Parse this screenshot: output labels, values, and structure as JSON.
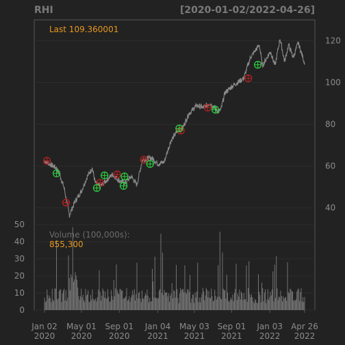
{
  "chart_data": {
    "type": "line",
    "title": "RHI",
    "date_range": "[2020-01-02/2022-04-26]",
    "last_label": "Last 109.360001",
    "price_axis": {
      "ylim": [
        32,
        130
      ],
      "ticks": [
        "40",
        "60",
        "80",
        "100",
        "120"
      ]
    },
    "price_series": {
      "name": "RHI",
      "points": [
        [
          "2020-01-02",
          62.5
        ],
        [
          "2020-02-10",
          59
        ],
        [
          "2020-02-20",
          56
        ],
        [
          "2020-03-05",
          50
        ],
        [
          "2020-03-23",
          36.5
        ],
        [
          "2020-04-10",
          43
        ],
        [
          "2020-05-01",
          48
        ],
        [
          "2020-05-20",
          55
        ],
        [
          "2020-06-05",
          59
        ],
        [
          "2020-06-15",
          52
        ],
        [
          "2020-07-01",
          50
        ],
        [
          "2020-07-20",
          53
        ],
        [
          "2020-08-10",
          56
        ],
        [
          "2020-09-01",
          53
        ],
        [
          "2020-09-20",
          52
        ],
        [
          "2020-10-10",
          55
        ],
        [
          "2020-10-28",
          51
        ],
        [
          "2020-11-15",
          63
        ],
        [
          "2020-12-15",
          64
        ],
        [
          "2021-01-05",
          61
        ],
        [
          "2021-01-25",
          62
        ],
        [
          "2021-02-15",
          72
        ],
        [
          "2021-03-10",
          77
        ],
        [
          "2021-03-25",
          78
        ],
        [
          "2021-04-15",
          85
        ],
        [
          "2021-05-10",
          89
        ],
        [
          "2021-06-01",
          88
        ],
        [
          "2021-06-20",
          90
        ],
        [
          "2021-07-01",
          89
        ],
        [
          "2021-07-20",
          86
        ],
        [
          "2021-07-28",
          87
        ],
        [
          "2021-08-10",
          95
        ],
        [
          "2021-09-01",
          98
        ],
        [
          "2021-09-20",
          100
        ],
        [
          "2021-10-10",
          102
        ],
        [
          "2021-11-01",
          112
        ],
        [
          "2021-11-30",
          118
        ],
        [
          "2021-12-10",
          108
        ],
        [
          "2022-01-05",
          115
        ],
        [
          "2022-01-20",
          108
        ],
        [
          "2022-02-05",
          121
        ],
        [
          "2022-02-20",
          110
        ],
        [
          "2022-03-05",
          118
        ],
        [
          "2022-03-20",
          112
        ],
        [
          "2022-04-05",
          119
        ],
        [
          "2022-04-26",
          109.36
        ]
      ]
    },
    "sell_markers": [
      [
        "2020-01-10",
        62.5
      ],
      [
        "2020-03-12",
        42.5
      ],
      [
        "2020-07-01",
        52
      ],
      [
        "2020-08-25",
        56
      ],
      [
        "2020-11-20",
        63
      ],
      [
        "2021-03-20",
        77
      ],
      [
        "2021-06-15",
        88
      ],
      [
        "2021-10-25",
        102
      ]
    ],
    "buy_markers": [
      [
        "2020-02-10",
        56.5
      ],
      [
        "2020-06-20",
        49.5
      ],
      [
        "2020-07-15",
        55.5
      ],
      [
        "2020-09-15",
        50.5
      ],
      [
        "2020-09-18",
        55
      ],
      [
        "2020-12-10",
        61
      ],
      [
        "2021-03-15",
        78
      ],
      [
        "2021-07-10",
        87
      ],
      [
        "2021-11-25",
        108.5
      ]
    ],
    "volume": {
      "label": "Volume (100,000s):",
      "last_value": "855,300",
      "ylim": [
        0,
        50
      ],
      "ticks": [
        "0",
        "10",
        "20",
        "30",
        "40",
        "50"
      ]
    },
    "x_axis": {
      "range": [
        "2020-01-02",
        "2022-04-26"
      ],
      "ticks": [
        {
          "date": "2020-01-02",
          "line1": "Jan 02",
          "line2": "2020"
        },
        {
          "date": "2020-05-01",
          "line1": "May 01",
          "line2": "2020"
        },
        {
          "date": "2020-09-01",
          "line1": "Sep 01",
          "line2": "2020"
        },
        {
          "date": "2021-01-04",
          "line1": "Jan 04",
          "line2": "2021"
        },
        {
          "date": "2021-05-03",
          "line1": "May 03",
          "line2": "2021"
        },
        {
          "date": "2021-09-01",
          "line1": "Sep 01",
          "line2": "2021"
        },
        {
          "date": "2022-01-03",
          "line1": "Jan 03",
          "line2": "2022"
        },
        {
          "date": "2022-04-26",
          "line1": "Apr 26",
          "line2": "2022"
        }
      ]
    },
    "colors": {
      "background": "#222222",
      "price_line": "#8a8a8a",
      "volume_bars": "#7d7d7d",
      "annotation": "#e8981e",
      "buy_marker": "#2ecc40",
      "sell_marker": "#b22222",
      "frame": "#555555",
      "text": "#8c8c8c"
    },
    "grid": "on"
  }
}
